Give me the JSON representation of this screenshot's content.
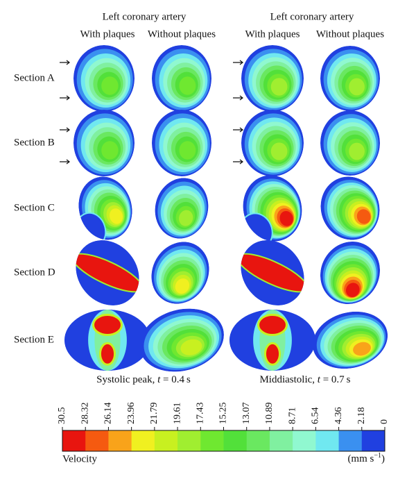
{
  "column_groups": [
    {
      "title": "Left coronary artery",
      "columns": [
        "With plaques",
        "Without plaques"
      ]
    },
    {
      "title": "Left coronary artery",
      "columns": [
        "With plaques",
        "Without plaques"
      ]
    }
  ],
  "rows": [
    "Section A",
    "Section B",
    "Section C",
    "Section D",
    "Section E"
  ],
  "captions": [
    [
      "Systolic peak, ",
      "t",
      " = 0.4 s"
    ],
    [
      "Middiastolic, ",
      "t",
      " = 0.7 s"
    ]
  ],
  "colorbar": {
    "ticks": [
      30.5,
      28.32,
      26.14,
      23.96,
      21.79,
      19.61,
      17.43,
      15.25,
      13.07,
      10.89,
      8.71,
      6.54,
      4.36,
      2.18,
      0
    ],
    "colors": [
      "#e8150f",
      "#f55a10",
      "#f9a31a",
      "#f0f020",
      "#c8f020",
      "#a0ee30",
      "#6fe830",
      "#52e03a",
      "#6ae860",
      "#80f0a0",
      "#90f8d0",
      "#70e8f0",
      "#3a90f0",
      "#2040e0"
    ],
    "label": "Velocity",
    "unit": [
      "(mm s",
      "−1",
      ")"
    ]
  }
}
